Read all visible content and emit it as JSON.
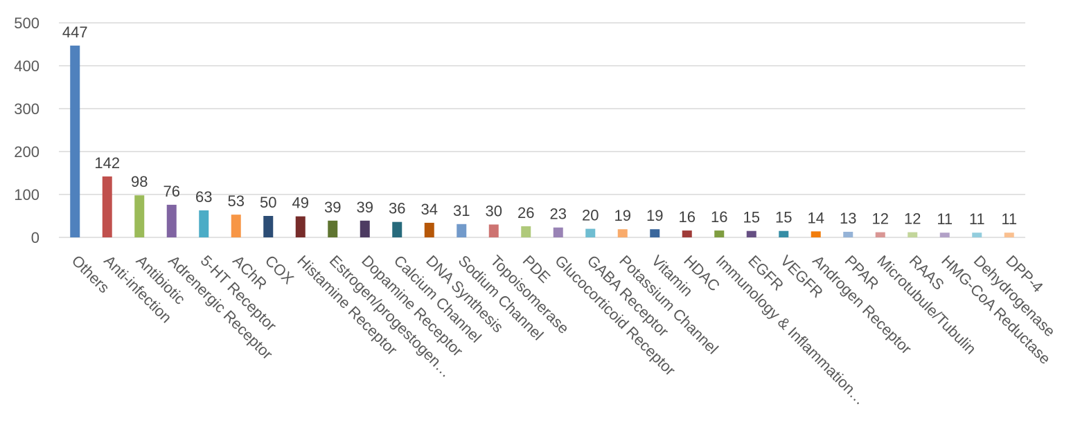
{
  "chart_data": {
    "type": "bar",
    "title": "",
    "xlabel": "",
    "ylabel": "",
    "ylim": [
      0,
      500
    ],
    "yticks": [
      0,
      100,
      200,
      300,
      400,
      500
    ],
    "grid": true,
    "legend": "none",
    "categories": [
      "Others",
      "Anti-infection",
      "Antibiotic",
      "Adrenergic Receptor",
      "5-HT Receptor",
      "AChR",
      "COX",
      "Histamine Receptor",
      "Estrogen/progestogen…",
      "Dopamine Receptor",
      "Calcium Channel",
      "DNA Synthesis",
      "Sodium Channel",
      "Topoisomerase",
      "PDE",
      "Glucocorticoid Receptor",
      "GABA Receptor",
      "Potassium Channel",
      "Vitamin",
      "HDAC",
      "Immunology & Inflammation…",
      "EGFR",
      "VEGFR",
      "Androgen Receptor",
      "PPAR",
      "Microtubule/Tubulin",
      "RAAS",
      "HMG-CoA Reductase",
      "Dehydrogenase",
      "DPP-4"
    ],
    "values": [
      447,
      142,
      98,
      76,
      63,
      53,
      50,
      49,
      39,
      39,
      36,
      34,
      31,
      30,
      26,
      23,
      20,
      19,
      19,
      16,
      16,
      15,
      15,
      14,
      13,
      12,
      12,
      11,
      11,
      11
    ],
    "colors": [
      "#4f81bd",
      "#c0504d",
      "#9bbb59",
      "#8064a2",
      "#4bacc6",
      "#f79646",
      "#2c4d75",
      "#772c2a",
      "#5f7530",
      "#4d3b62",
      "#276a7c",
      "#b65708",
      "#729aca",
      "#cd7371",
      "#afc97a",
      "#9983b5",
      "#6fbdd1",
      "#f9ab6b",
      "#3a679c",
      "#9f3b38",
      "#7f9d40",
      "#664f83",
      "#358da5",
      "#f27d0c",
      "#95b3d7",
      "#d99694",
      "#c3d69b",
      "#b2a1c7",
      "#93cddd",
      "#fac090"
    ]
  }
}
